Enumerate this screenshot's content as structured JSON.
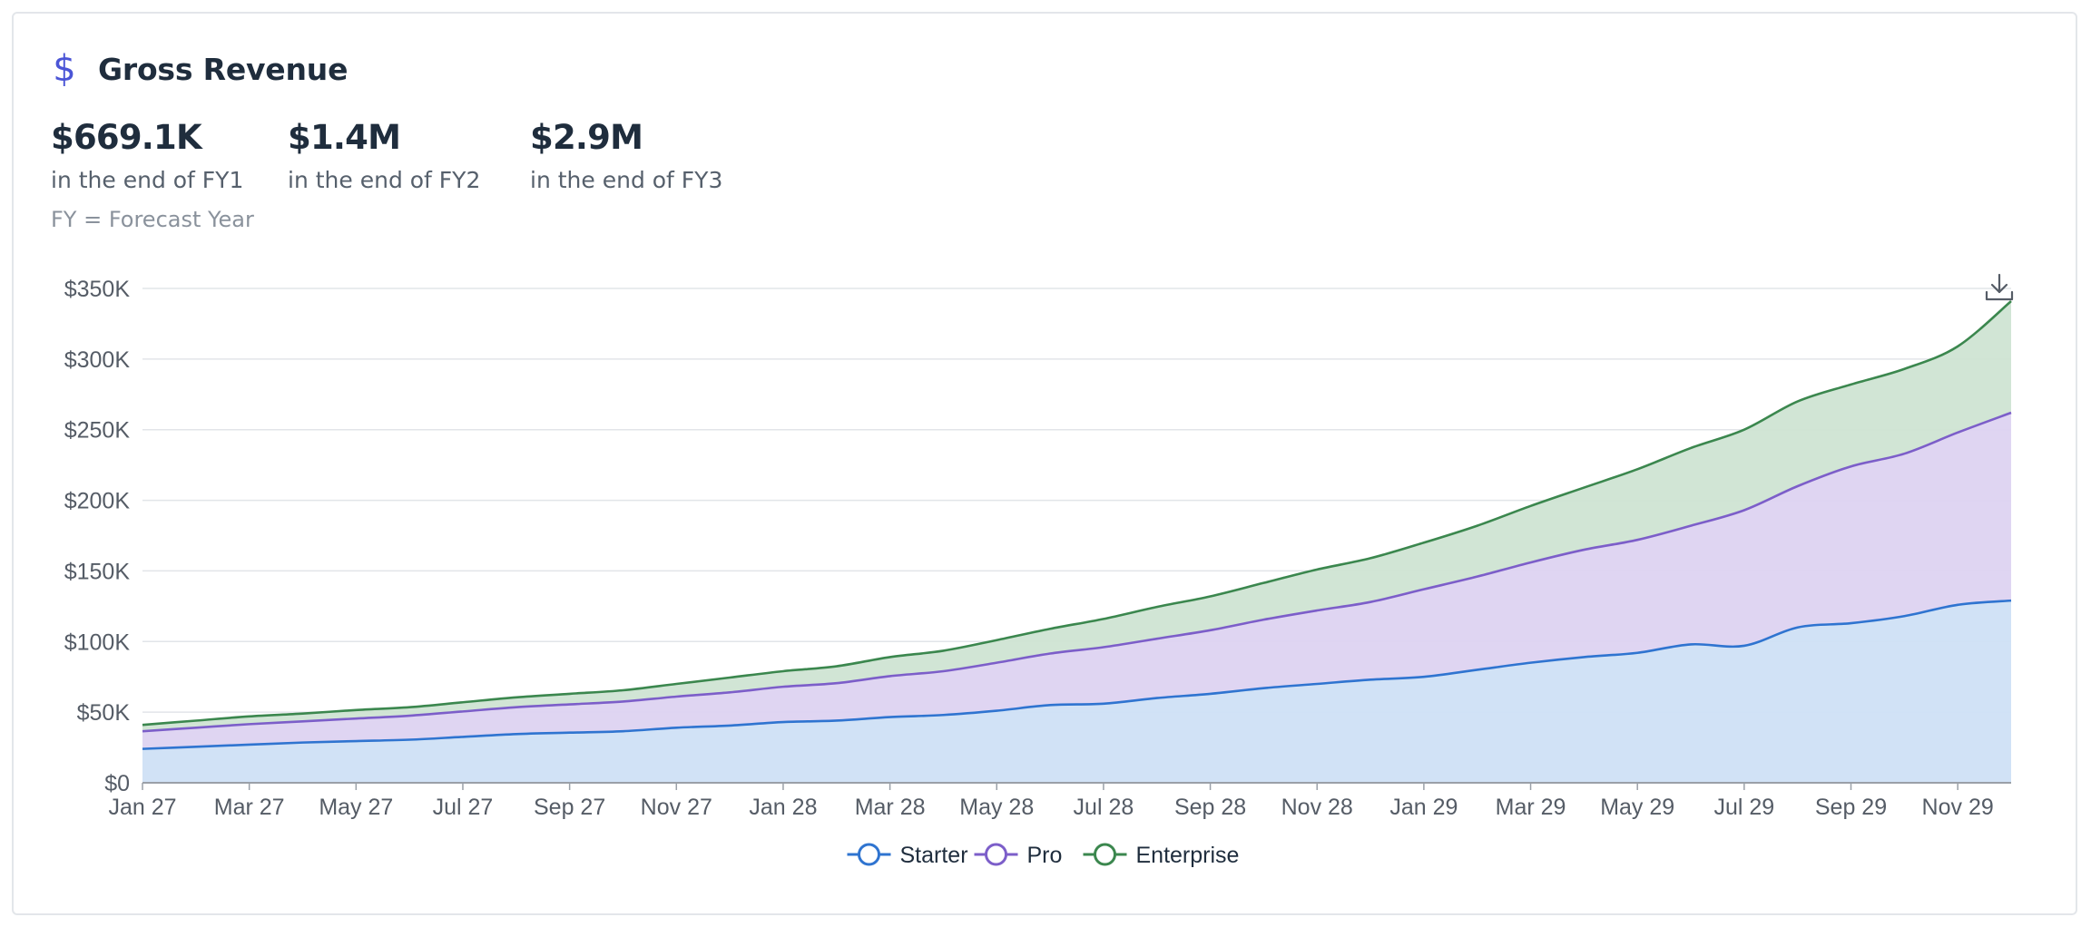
{
  "card": {
    "title": "Gross Revenue",
    "icon": "dollar-icon",
    "icon_glyph": "$",
    "accent": "#4b55d6"
  },
  "metrics": [
    {
      "value": "$669.1K",
      "caption": "in the end of FY1"
    },
    {
      "value": "$1.4M",
      "caption": "in the end of FY2"
    },
    {
      "value": "$2.9M",
      "caption": "in the end of FY3"
    }
  ],
  "note": "FY = Forecast Year",
  "toolbar": {
    "download_icon": "download-icon"
  },
  "chart_data": {
    "type": "area",
    "stacked": true,
    "grid": true,
    "legend_position": "bottom-center",
    "title": "",
    "xlabel": "",
    "ylabel": "",
    "ylim": [
      0,
      350000
    ],
    "yticks": [
      0,
      50000,
      100000,
      150000,
      200000,
      250000,
      300000,
      350000
    ],
    "ytick_labels": [
      "$0",
      "$50K",
      "$100K",
      "$150K",
      "$200K",
      "$250K",
      "$300K",
      "$350K"
    ],
    "xtick_labels": [
      "Jan 27",
      "Mar 27",
      "May 27",
      "Jul 27",
      "Sep 27",
      "Nov 27",
      "Jan 28",
      "Mar 28",
      "May 28",
      "Jul 28",
      "Sep 28",
      "Nov 28",
      "Jan 29",
      "Mar 29",
      "May 29",
      "Jul 29",
      "Sep 29",
      "Nov 29"
    ],
    "x": [
      "Jan 27",
      "Feb 27",
      "Mar 27",
      "Apr 27",
      "May 27",
      "Jun 27",
      "Jul 27",
      "Aug 27",
      "Sep 27",
      "Oct 27",
      "Nov 27",
      "Dec 27",
      "Jan 28",
      "Feb 28",
      "Mar 28",
      "Apr 28",
      "May 28",
      "Jun 28",
      "Jul 28",
      "Aug 28",
      "Sep 28",
      "Oct 28",
      "Nov 28",
      "Dec 28",
      "Jan 29",
      "Feb 29",
      "Mar 29",
      "Apr 29",
      "May 29",
      "Jun 29",
      "Jul 29",
      "Aug 29",
      "Sep 29",
      "Oct 29",
      "Nov 29",
      "Dec 29"
    ],
    "series": [
      {
        "name": "Starter",
        "color": "#2f74d0",
        "fill": "#cfe0f5",
        "values": [
          24000,
          25500,
          27000,
          28500,
          29500,
          30500,
          32500,
          34500,
          35500,
          36500,
          39000,
          40500,
          43000,
          44000,
          46500,
          48000,
          51000,
          55000,
          56000,
          60000,
          63000,
          67000,
          70000,
          73000,
          75000,
          80000,
          85000,
          89000,
          92000,
          98000,
          97000,
          110000,
          113000,
          118000,
          126000,
          129000
        ]
      },
      {
        "name": "Pro",
        "color": "#7c5ec9",
        "fill": "#ddd3f1",
        "values": [
          12500,
          13500,
          14500,
          15000,
          16000,
          17000,
          18000,
          19000,
          20000,
          21000,
          22000,
          23500,
          25000,
          26500,
          29000,
          31000,
          34000,
          36500,
          40000,
          42000,
          45000,
          48500,
          52000,
          55000,
          62000,
          66000,
          71000,
          76000,
          80000,
          84000,
          96000,
          100000,
          111000,
          115000,
          122000,
          133000
        ]
      },
      {
        "name": "Enterprise",
        "color": "#3b874e",
        "fill": "#cfe4d3",
        "values": [
          4500,
          5000,
          5500,
          5500,
          6000,
          6000,
          6500,
          7000,
          7500,
          8000,
          9000,
          10500,
          11000,
          12000,
          13500,
          14500,
          16000,
          17500,
          20000,
          22500,
          24000,
          26000,
          29000,
          31000,
          33000,
          36000,
          40000,
          44000,
          50000,
          55000,
          57000,
          60000,
          58000,
          60000,
          61000,
          79000
        ]
      }
    ]
  }
}
